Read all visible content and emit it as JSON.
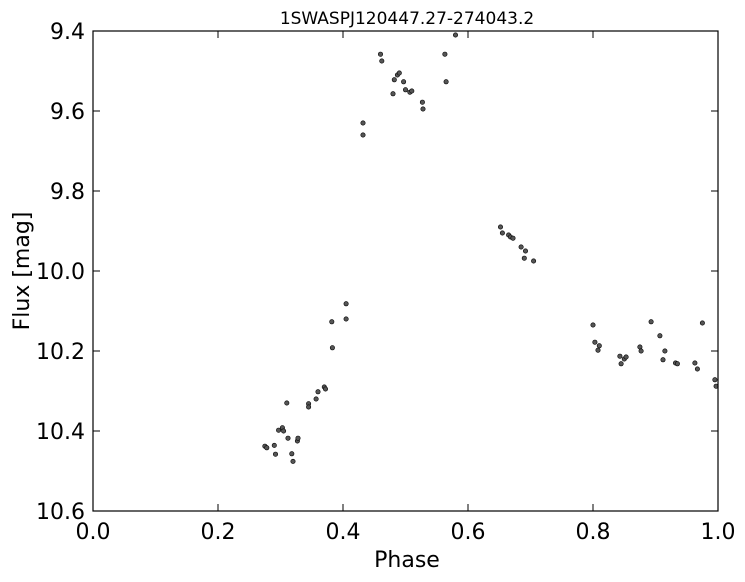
{
  "chart_data": {
    "type": "scatter",
    "title": "1SWASPJ120447.27-274043.2",
    "xlabel": "Phase",
    "ylabel": "Flux [mag]",
    "xlim": [
      0.0,
      1.0
    ],
    "ylim": [
      9.4,
      10.6
    ],
    "y_inverted": true,
    "grid": false,
    "xticks": [
      "0.0",
      "0.2",
      "0.4",
      "0.6",
      "0.8",
      "1.0"
    ],
    "yticks": [
      "9.4",
      "9.6",
      "9.8",
      "10.0",
      "10.2",
      "10.4",
      "10.6"
    ],
    "marker_color": "#555555",
    "points": [
      [
        0.275,
        10.438
      ],
      [
        0.278,
        10.442
      ],
      [
        0.29,
        10.436
      ],
      [
        0.292,
        10.458
      ],
      [
        0.297,
        10.398
      ],
      [
        0.303,
        10.392
      ],
      [
        0.305,
        10.4
      ],
      [
        0.31,
        10.33
      ],
      [
        0.312,
        10.418
      ],
      [
        0.318,
        10.457
      ],
      [
        0.32,
        10.476
      ],
      [
        0.327,
        10.425
      ],
      [
        0.328,
        10.418
      ],
      [
        0.345,
        10.332
      ],
      [
        0.345,
        10.34
      ],
      [
        0.357,
        10.32
      ],
      [
        0.36,
        10.302
      ],
      [
        0.37,
        10.29
      ],
      [
        0.372,
        10.295
      ],
      [
        0.382,
        10.127
      ],
      [
        0.383,
        10.192
      ],
      [
        0.405,
        10.082
      ],
      [
        0.405,
        10.12
      ],
      [
        0.432,
        9.63
      ],
      [
        0.432,
        9.66
      ],
      [
        0.46,
        9.458
      ],
      [
        0.462,
        9.475
      ],
      [
        0.48,
        9.557
      ],
      [
        0.482,
        9.522
      ],
      [
        0.487,
        9.51
      ],
      [
        0.49,
        9.505
      ],
      [
        0.497,
        9.527
      ],
      [
        0.5,
        9.547
      ],
      [
        0.507,
        9.553
      ],
      [
        0.51,
        9.55
      ],
      [
        0.527,
        9.578
      ],
      [
        0.528,
        9.595
      ],
      [
        0.563,
        9.458
      ],
      [
        0.565,
        9.527
      ],
      [
        0.58,
        9.41
      ],
      [
        0.652,
        9.89
      ],
      [
        0.655,
        9.905
      ],
      [
        0.665,
        9.91
      ],
      [
        0.668,
        9.915
      ],
      [
        0.672,
        9.918
      ],
      [
        0.685,
        9.94
      ],
      [
        0.69,
        9.968
      ],
      [
        0.692,
        9.95
      ],
      [
        0.705,
        9.975
      ],
      [
        0.8,
        10.135
      ],
      [
        0.803,
        10.178
      ],
      [
        0.808,
        10.198
      ],
      [
        0.81,
        10.187
      ],
      [
        0.843,
        10.213
      ],
      [
        0.845,
        10.232
      ],
      [
        0.85,
        10.22
      ],
      [
        0.853,
        10.215
      ],
      [
        0.875,
        10.19
      ],
      [
        0.877,
        10.2
      ],
      [
        0.893,
        10.127
      ],
      [
        0.907,
        10.162
      ],
      [
        0.912,
        10.222
      ],
      [
        0.915,
        10.2
      ],
      [
        0.932,
        10.23
      ],
      [
        0.935,
        10.232
      ],
      [
        0.963,
        10.23
      ],
      [
        0.967,
        10.245
      ],
      [
        0.975,
        10.13
      ],
      [
        0.995,
        10.272
      ],
      [
        0.997,
        10.288
      ]
    ]
  }
}
